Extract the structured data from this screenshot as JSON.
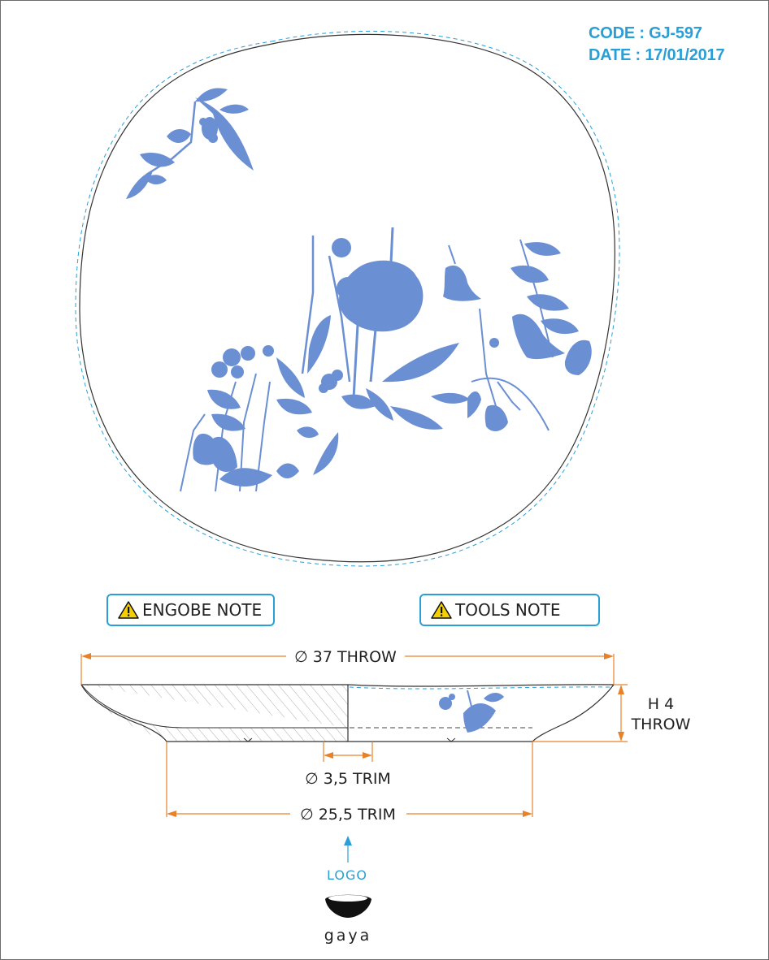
{
  "header": {
    "code_text": "CODE : GJ-597",
    "date_text": "DATE : 17/01/2017"
  },
  "notes": {
    "engobe": "ENGOBE NOTE",
    "tools": "TOOLS NOTE"
  },
  "dimensions": {
    "diameter_throw": "∅ 37 THROW",
    "height_line1": "H 4",
    "height_line2": "THROW",
    "foot_trim": "∅ 3,5 TRIM",
    "base_trim": "∅ 25,5 TRIM"
  },
  "logo": {
    "pointer_label": "LOGO",
    "brand_name": "gaya"
  },
  "colors": {
    "accent_blue": "#2a9fd6",
    "dimension_orange": "#e8822a",
    "decal_blue": "#6b8fd3",
    "warning_yellow": "#f5d000"
  },
  "icons": {
    "warning": "warning-triangle-icon",
    "arrow": "arrow-up-icon"
  }
}
